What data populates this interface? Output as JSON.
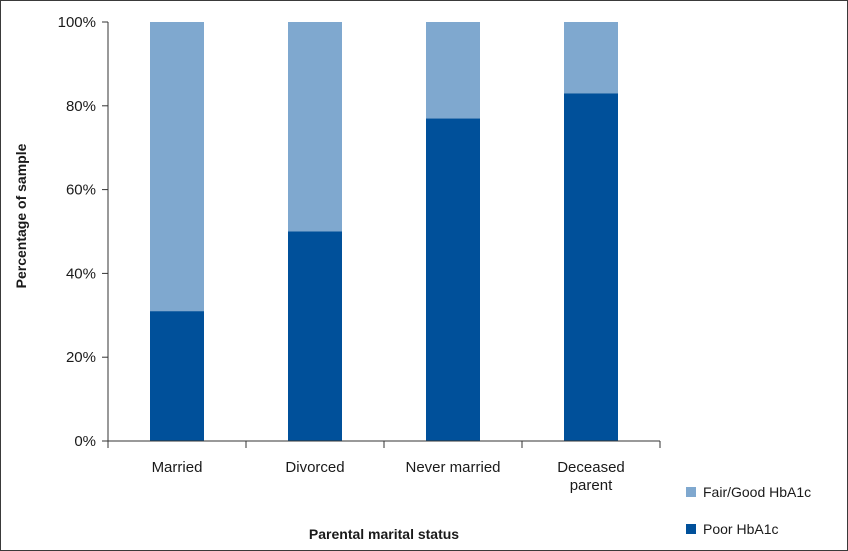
{
  "chart_data": {
    "type": "bar",
    "stacked": true,
    "categories": [
      "Married",
      "Divorced",
      "Never married",
      "Deceased parent"
    ],
    "series": [
      {
        "name": "Poor HbA1c",
        "values": [
          31,
          50,
          77,
          83
        ],
        "color": "#00509a"
      },
      {
        "name": "Fair/Good HbA1c",
        "values": [
          69,
          50,
          23,
          17
        ],
        "color": "#7fa8cf"
      }
    ],
    "xlabel": "Parental marital status",
    "ylabel": "Percentage of sample",
    "ylim": [
      0,
      100
    ],
    "yticks": [
      "0%",
      "20%",
      "40%",
      "60%",
      "80%",
      "100%"
    ],
    "grid": false,
    "legend_position": "bottom-right",
    "legend_order": [
      "Fair/Good HbA1c",
      "Poor HbA1c"
    ]
  }
}
